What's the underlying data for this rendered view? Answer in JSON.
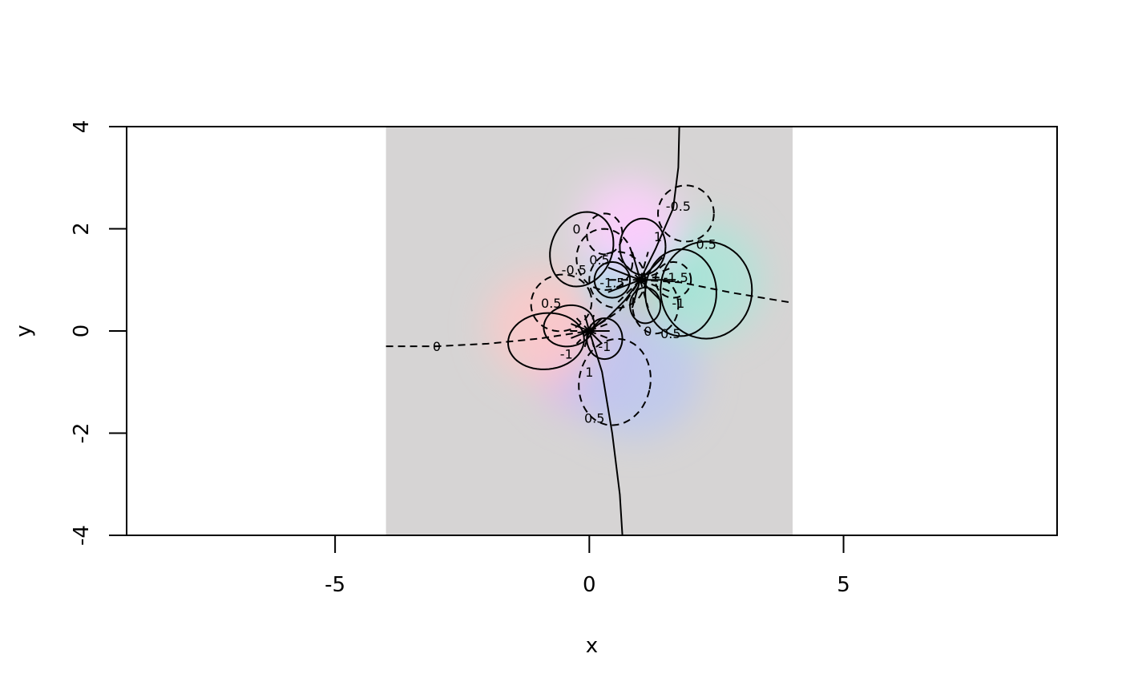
{
  "chart_data": {
    "type": "heatmap",
    "title": "",
    "xlabel": "x",
    "ylabel": "y",
    "xlim": [
      -9.1,
      9.2
    ],
    "ylim": [
      -4,
      4
    ],
    "x_ticks": [
      -5,
      0,
      5
    ],
    "x_tick_labels": [
      "-5",
      "0",
      "5"
    ],
    "y_ticks": [
      -4,
      -2,
      0,
      2,
      4
    ],
    "y_tick_labels": [
      "-4",
      "-2",
      "0",
      "2",
      "4"
    ],
    "grid": false,
    "legend": "none",
    "image_extent": {
      "x": [
        -4,
        4
      ],
      "y": [
        -4,
        4
      ]
    },
    "background_color": "#d6d4d4",
    "color_regions": [
      {
        "x": 1.0,
        "y": 1.75,
        "r": 0.55,
        "color": "#ff9bff"
      },
      {
        "x": 1.6,
        "y": 1.05,
        "r": 0.55,
        "color": "#33e0c8"
      },
      {
        "x": 0.55,
        "y": 1.0,
        "r": 0.55,
        "color": "#27e8ff"
      },
      {
        "x": 1.05,
        "y": 0.55,
        "r": 0.5,
        "color": "#ffb27a"
      },
      {
        "x": 0.2,
        "y": 0.0,
        "r": 0.45,
        "color": "#1ee6b9"
      },
      {
        "x": -0.35,
        "y": 0.0,
        "r": 0.5,
        "color": "#ffb884"
      },
      {
        "x": 0.0,
        "y": -0.6,
        "r": 1.1,
        "color": "#e4b4ee"
      },
      {
        "x": 0.9,
        "y": -0.8,
        "r": 1.3,
        "color": "#bcc8f0"
      },
      {
        "x": -0.9,
        "y": 0.1,
        "r": 1.1,
        "color": "#ffc8c8"
      },
      {
        "x": 2.2,
        "y": 1.0,
        "r": 1.2,
        "color": "#a9e6d8"
      },
      {
        "x": 0.8,
        "y": 2.0,
        "r": 1.0,
        "color": "#ffd2ff"
      }
    ],
    "contour_labels": [
      {
        "x": 1.75,
        "y": 2.45,
        "text": "-0.5"
      },
      {
        "x": 2.3,
        "y": 1.7,
        "text": "0.5"
      },
      {
        "x": -0.25,
        "y": 2.0,
        "text": "0"
      },
      {
        "x": -0.3,
        "y": 1.2,
        "text": "-0.5"
      },
      {
        "x": -0.75,
        "y": 0.55,
        "text": "0.5"
      },
      {
        "x": 1.35,
        "y": 1.85,
        "text": "1"
      },
      {
        "x": 1.7,
        "y": 1.05,
        "text": "-1.5"
      },
      {
        "x": 0.45,
        "y": 0.95,
        "text": "-1.5"
      },
      {
        "x": 1.75,
        "y": 0.55,
        "text": "-1"
      },
      {
        "x": 1.15,
        "y": 0.0,
        "text": "0"
      },
      {
        "x": 1.6,
        "y": -0.05,
        "text": "0.5"
      },
      {
        "x": -3.0,
        "y": -0.3,
        "text": "0"
      },
      {
        "x": -0.45,
        "y": -0.45,
        "text": "-1"
      },
      {
        "x": 0.3,
        "y": -0.3,
        "text": "-1"
      },
      {
        "x": 0.0,
        "y": -0.8,
        "text": "1"
      },
      {
        "x": 0.1,
        "y": -1.7,
        "text": "0.5"
      },
      {
        "x": 0.2,
        "y": 1.4,
        "text": "0.5"
      }
    ]
  }
}
